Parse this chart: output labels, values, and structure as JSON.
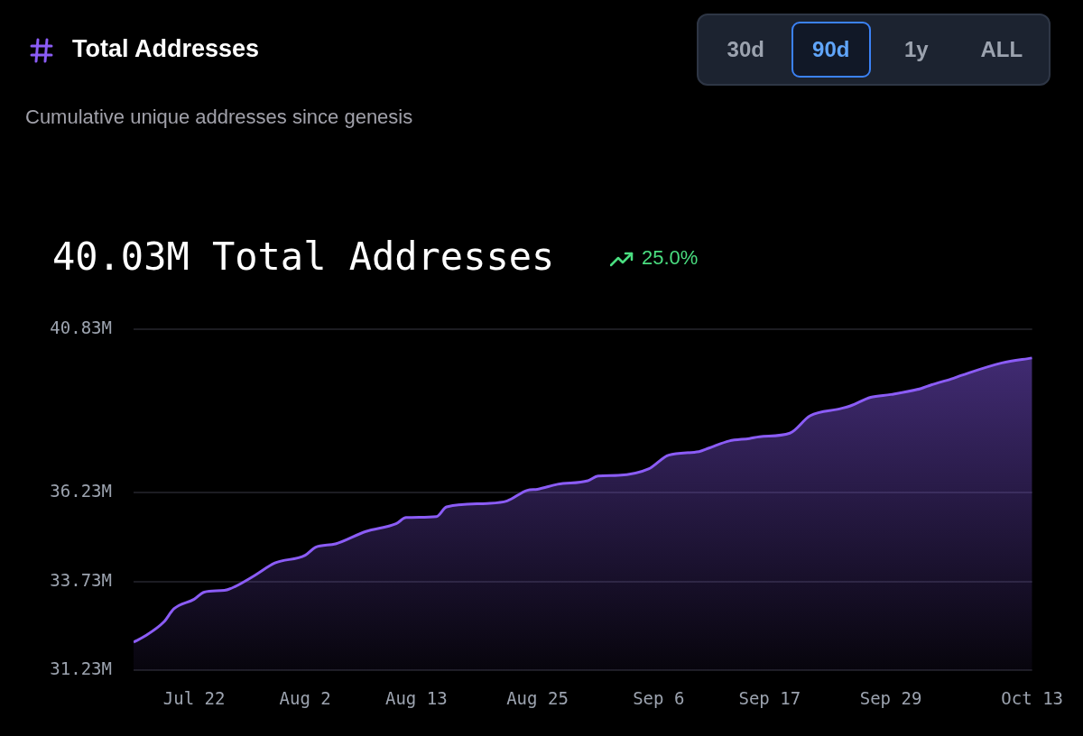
{
  "chart_data": {
    "type": "area",
    "title": "Total Addresses",
    "subtitle": "Cumulative unique addresses since genesis",
    "annotations": [
      "30d",
      "90d",
      "1y",
      "ALL",
      "40.03M Total Addresses",
      "25.0%"
    ],
    "x": [
      "--07-16",
      "--07-17",
      "--07-19",
      "--07-20",
      "--07-22",
      "--07-23",
      "--07-25",
      "--07-26",
      "--07-28",
      "--07-30",
      "--08-02",
      "--08-03",
      "--08-05",
      "--08-08",
      "--08-11",
      "--08-12",
      "--08-15",
      "--08-16",
      "--08-20",
      "--08-22",
      "--08-24",
      "--08-25",
      "--08-27",
      "--08-30",
      "--08-31",
      "--09-02",
      "--09-05",
      "--09-07",
      "--09-10",
      "--09-11",
      "--09-13",
      "--09-15",
      "--09-16",
      "--09-19",
      "--09-21",
      "--09-24",
      "--09-25",
      "--09-27",
      "--09-29",
      "--10-02",
      "--10-03",
      "--10-05",
      "--10-06",
      "--10-10",
      "--10-13"
    ],
    "values": [
      32.02,
      32.17,
      32.59,
      32.96,
      33.23,
      33.43,
      33.48,
      33.58,
      33.9,
      34.25,
      34.47,
      34.69,
      34.79,
      35.14,
      35.36,
      35.53,
      35.56,
      35.83,
      35.93,
      36.0,
      36.3,
      36.33,
      36.47,
      36.57,
      36.7,
      36.72,
      36.9,
      37.29,
      37.39,
      37.49,
      37.69,
      37.76,
      37.81,
      37.91,
      38.4,
      38.6,
      38.68,
      38.92,
      39.0,
      39.17,
      39.27,
      39.44,
      39.54,
      39.89,
      40.03
    ],
    "color": "#8b5cf6",
    "xlim": [
      "--07-16",
      "--10-13"
    ],
    "xticks": [
      {
        "value": "--07-22",
        "label": "Jul 22"
      },
      {
        "value": "--08-02",
        "label": "Aug 2"
      },
      {
        "value": "--08-13",
        "label": "Aug 13"
      },
      {
        "value": "--08-25",
        "label": "Aug 25"
      },
      {
        "value": "--09-06",
        "label": "Sep 6"
      },
      {
        "value": "--09-17",
        "label": "Sep 17"
      },
      {
        "value": "--09-29",
        "label": "Sep 29"
      },
      {
        "value": "--10-13",
        "label": "Oct 13"
      }
    ],
    "ylim": [
      31.23,
      40.83
    ],
    "yticks": [
      {
        "value": 31.23,
        "label": "31.23M"
      },
      {
        "value": 33.73,
        "label": "33.73M"
      },
      {
        "value": 36.23,
        "label": "36.23M"
      },
      {
        "value": 40.83,
        "label": "40.83M"
      }
    ],
    "grid": "y"
  }
}
